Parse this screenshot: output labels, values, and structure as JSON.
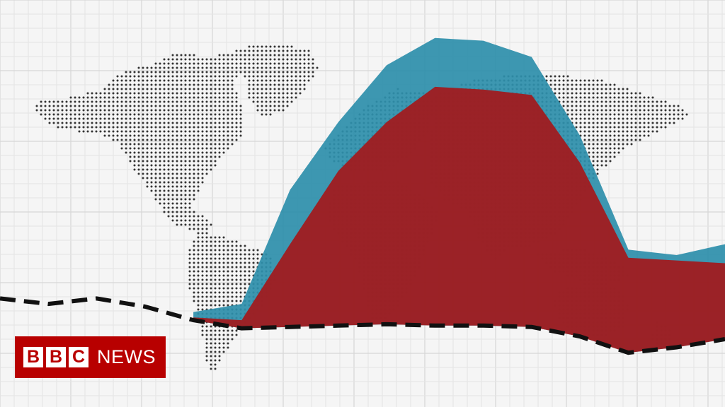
{
  "brand": {
    "blocks": [
      "B",
      "B",
      "C"
    ],
    "news": "NEWS",
    "background_color": "#b80000",
    "block_color": "#ffffff"
  },
  "map": {
    "type": "dotted-world-map",
    "dot_color": "#333333"
  },
  "chart_data": {
    "type": "area",
    "title": "",
    "xlabel": "",
    "ylabel": "",
    "x": [
      0,
      1,
      2,
      3,
      4,
      5,
      6,
      7,
      8,
      9,
      10,
      11,
      12,
      13,
      14,
      15
    ],
    "ylim": [
      -3,
      12
    ],
    "grid": true,
    "legend": "none",
    "series": [
      {
        "style": "area",
        "color": "#2e8fab",
        "values": [
          null,
          null,
          null,
          null,
          0.5,
          0.8,
          5.0,
          7.5,
          9.6,
          10.6,
          10.5,
          9.9,
          7.0,
          2.8,
          2.6,
          3.0
        ]
      },
      {
        "style": "area",
        "color": "#a3191c",
        "values": [
          null,
          null,
          null,
          null,
          0.3,
          0.2,
          3.0,
          5.7,
          7.5,
          8.8,
          8.7,
          8.5,
          6.0,
          2.5,
          2.4,
          2.3
        ]
      },
      {
        "style": "dashed-line",
        "color": "#111111",
        "values": [
          1.0,
          0.8,
          1.0,
          0.7,
          0.2,
          -0.1,
          -0.05,
          0.0,
          0.05,
          0.0,
          0.0,
          -0.05,
          -0.4,
          -1.0,
          -0.8,
          -0.5
        ]
      }
    ]
  }
}
